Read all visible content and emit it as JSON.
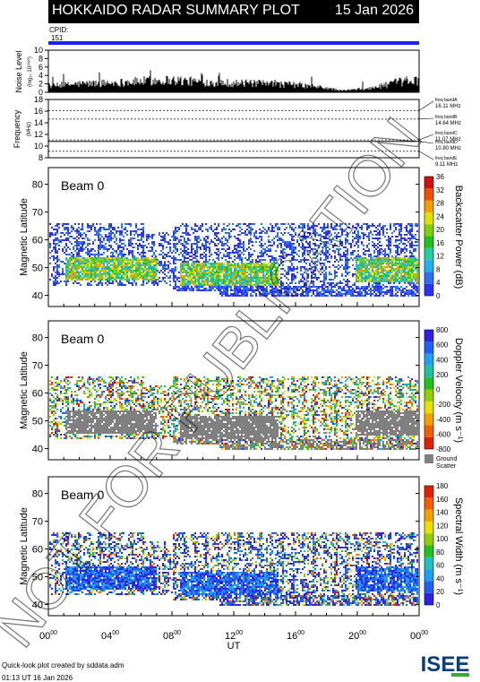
{
  "header": {
    "title": "HOKKAIDO RADAR SUMMARY PLOT",
    "date": "15 Jan 2026"
  },
  "cpid": {
    "label": "CPID:",
    "value": "151"
  },
  "colors": {
    "cpid_bar": "#2020f0",
    "ground_scatter": "#808080",
    "watermark": "#000000"
  },
  "watermark": {
    "text": "NOT FOR PUBLICATION"
  },
  "footer": {
    "line1": "Quick-look plot created by sddata.adm",
    "line2": "01:13 UT 16 Jan 2026"
  },
  "logo": {
    "text": "ISEE"
  },
  "chart_data": [
    {
      "type": "area",
      "ylabel": "Noise Level",
      "ylabel_sub": "(log₁₀ 10¹⁰²⁰)",
      "ylim": [
        0,
        10
      ],
      "yticks": [
        "0",
        "2",
        "4",
        "6",
        "8",
        "10"
      ],
      "xlim_hours": [
        0,
        24
      ],
      "profile": [
        {
          "t": 0,
          "v": 1.4
        },
        {
          "t": 2,
          "v": 2.0
        },
        {
          "t": 4,
          "v": 2.2
        },
        {
          "t": 6,
          "v": 2.6
        },
        {
          "t": 7,
          "v": 2.8
        },
        {
          "t": 8,
          "v": 2.9
        },
        {
          "t": 10,
          "v": 2.4
        },
        {
          "t": 12,
          "v": 2.2
        },
        {
          "t": 14,
          "v": 2.0
        },
        {
          "t": 16,
          "v": 1.8
        },
        {
          "t": 18,
          "v": 1.0
        },
        {
          "t": 19,
          "v": 0.4
        },
        {
          "t": 21,
          "v": 1.0
        },
        {
          "t": 22.5,
          "v": 2.3
        },
        {
          "t": 24,
          "v": 2.8
        }
      ]
    },
    {
      "type": "line",
      "ylabel": "Frequency",
      "ylabel_sub": "(MHz)",
      "ylim": [
        8,
        18
      ],
      "yticks": [
        "8",
        "10",
        "12",
        "14",
        "16",
        "18"
      ],
      "bands": [
        {
          "label": "freq bandA",
          "value_label": "16.11 MHz",
          "mhz": 16.11
        },
        {
          "label": "freq bandB",
          "value_label": "14.64 MHz",
          "mhz": 14.64
        },
        {
          "label": "freq bandC",
          "value_label": "11.07 MHz",
          "mhz": 11.07
        },
        {
          "label": "freq bandD",
          "value_label": "10.80 MHz",
          "mhz": 10.8
        },
        {
          "label": "freq bandE",
          "value_label": "9.11 MHz",
          "mhz": 9.11
        }
      ],
      "operating_mhz": 10.8
    },
    {
      "type": "heatmap",
      "beam_label": "Beam  0",
      "ylabel": "Magnetic Latitude",
      "ylim": [
        36,
        86
      ],
      "yticks": [
        "40",
        "50",
        "60",
        "70",
        "80"
      ],
      "colorbar_label": "Backscatter Power (dB)",
      "colorbar_range": [
        0,
        36
      ],
      "colorbar_ticks": [
        "0",
        "4",
        "8",
        "12",
        "16",
        "20",
        "24",
        "28",
        "32",
        "36"
      ],
      "palette": "power"
    },
    {
      "type": "heatmap",
      "beam_label": "Beam  0",
      "ylabel": "Magnetic Latitude",
      "ylim": [
        36,
        86
      ],
      "yticks": [
        "40",
        "50",
        "60",
        "70",
        "80"
      ],
      "colorbar_label": "Doppler Velocity (m s⁻¹)",
      "colorbar_range": [
        -800,
        800
      ],
      "colorbar_ticks": [
        "-800",
        "-600",
        "-400",
        "-200",
        "0",
        "200",
        "400",
        "600",
        "800"
      ],
      "palette": "velocity",
      "ground_scatter_label": [
        "Ground",
        "Scatter"
      ]
    },
    {
      "type": "heatmap",
      "beam_label": "Beam  0",
      "ylabel": "Magnetic Latitude",
      "ylim": [
        36,
        86
      ],
      "yticks": [
        "40",
        "50",
        "60",
        "70",
        "80"
      ],
      "colorbar_label": "Spectral Width (m s⁻¹)",
      "colorbar_range": [
        0,
        180
      ],
      "colorbar_ticks": [
        "0",
        "20",
        "40",
        "60",
        "80",
        "100",
        "120",
        "140",
        "160",
        "180"
      ],
      "palette": "width"
    }
  ],
  "xaxis": {
    "label": "UT",
    "ticks": [
      {
        "h": "00",
        "m": "00"
      },
      {
        "h": "04",
        "m": "00"
      },
      {
        "h": "08",
        "m": "00"
      },
      {
        "h": "12",
        "m": "00"
      },
      {
        "h": "16",
        "m": "00"
      },
      {
        "h": "20",
        "m": "00"
      },
      {
        "h": "00",
        "m": "00"
      }
    ]
  },
  "echo_regions": [
    {
      "t0": 0.0,
      "t1": 3.0,
      "lat0": 44,
      "lat1": 66
    },
    {
      "t0": 3.0,
      "t1": 6.2,
      "lat0": 44,
      "lat1": 66
    },
    {
      "t0": 6.2,
      "t1": 8.0,
      "lat0": 44,
      "lat1": 63
    },
    {
      "t0": 8.0,
      "t1": 11.0,
      "lat0": 42,
      "lat1": 66
    },
    {
      "t0": 11.0,
      "t1": 16.0,
      "lat0": 40,
      "lat1": 66
    },
    {
      "t0": 16.0,
      "t1": 20.0,
      "lat0": 40,
      "lat1": 66
    },
    {
      "t0": 20.0,
      "t1": 24.0,
      "lat0": 40,
      "lat1": 66
    }
  ],
  "intense_regions": [
    {
      "t0": 1.0,
      "t1": 7.0,
      "lat0": 46,
      "lat1": 54
    },
    {
      "t0": 8.5,
      "t1": 14.8,
      "lat0": 44,
      "lat1": 52
    },
    {
      "t0": 19.8,
      "t1": 24.0,
      "lat0": 45,
      "lat1": 54
    }
  ]
}
